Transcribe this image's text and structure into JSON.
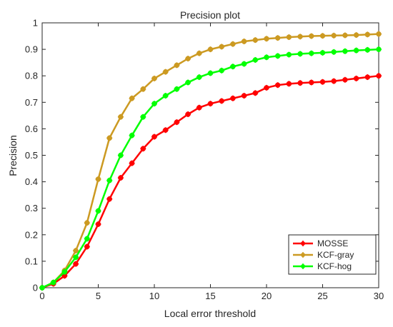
{
  "chart_data": {
    "type": "line",
    "title": "Precision plot",
    "xlabel": "Local error threshold",
    "ylabel": "Precision",
    "xlim": [
      0,
      30
    ],
    "ylim": [
      0,
      1
    ],
    "grid": false,
    "legend_position": "bottom-right",
    "x": [
      0,
      1,
      2,
      3,
      4,
      5,
      6,
      7,
      8,
      9,
      10,
      11,
      12,
      13,
      14,
      15,
      16,
      17,
      18,
      19,
      20,
      21,
      22,
      23,
      24,
      25,
      26,
      27,
      28,
      29,
      30
    ],
    "x_ticks": [
      "0",
      "5",
      "10",
      "15",
      "20",
      "25",
      "30"
    ],
    "y_ticks": [
      "0",
      "0.1",
      "0.2",
      "0.3",
      "0.4",
      "0.5",
      "0.6",
      "0.7",
      "0.8",
      "0.9",
      "1"
    ],
    "series": [
      {
        "name": "MOSSE",
        "color": "#ff0000",
        "values": [
          0,
          0.015,
          0.045,
          0.09,
          0.155,
          0.24,
          0.335,
          0.415,
          0.47,
          0.525,
          0.57,
          0.595,
          0.625,
          0.655,
          0.68,
          0.695,
          0.705,
          0.715,
          0.725,
          0.735,
          0.755,
          0.765,
          0.77,
          0.773,
          0.775,
          0.777,
          0.78,
          0.785,
          0.79,
          0.795,
          0.8
        ]
      },
      {
        "name": "KCF-gray",
        "color": "#cc9a22",
        "values": [
          0,
          0.02,
          0.065,
          0.14,
          0.245,
          0.41,
          0.565,
          0.645,
          0.715,
          0.75,
          0.79,
          0.815,
          0.84,
          0.865,
          0.885,
          0.9,
          0.91,
          0.92,
          0.93,
          0.935,
          0.94,
          0.943,
          0.946,
          0.948,
          0.95,
          0.951,
          0.952,
          0.953,
          0.954,
          0.956,
          0.958
        ]
      },
      {
        "name": "KCF-hog",
        "color": "#00ff00",
        "values": [
          0,
          0.02,
          0.06,
          0.115,
          0.185,
          0.29,
          0.405,
          0.5,
          0.575,
          0.645,
          0.695,
          0.725,
          0.75,
          0.775,
          0.795,
          0.81,
          0.82,
          0.835,
          0.845,
          0.86,
          0.87,
          0.875,
          0.88,
          0.883,
          0.885,
          0.887,
          0.89,
          0.893,
          0.896,
          0.898,
          0.9
        ]
      }
    ]
  }
}
